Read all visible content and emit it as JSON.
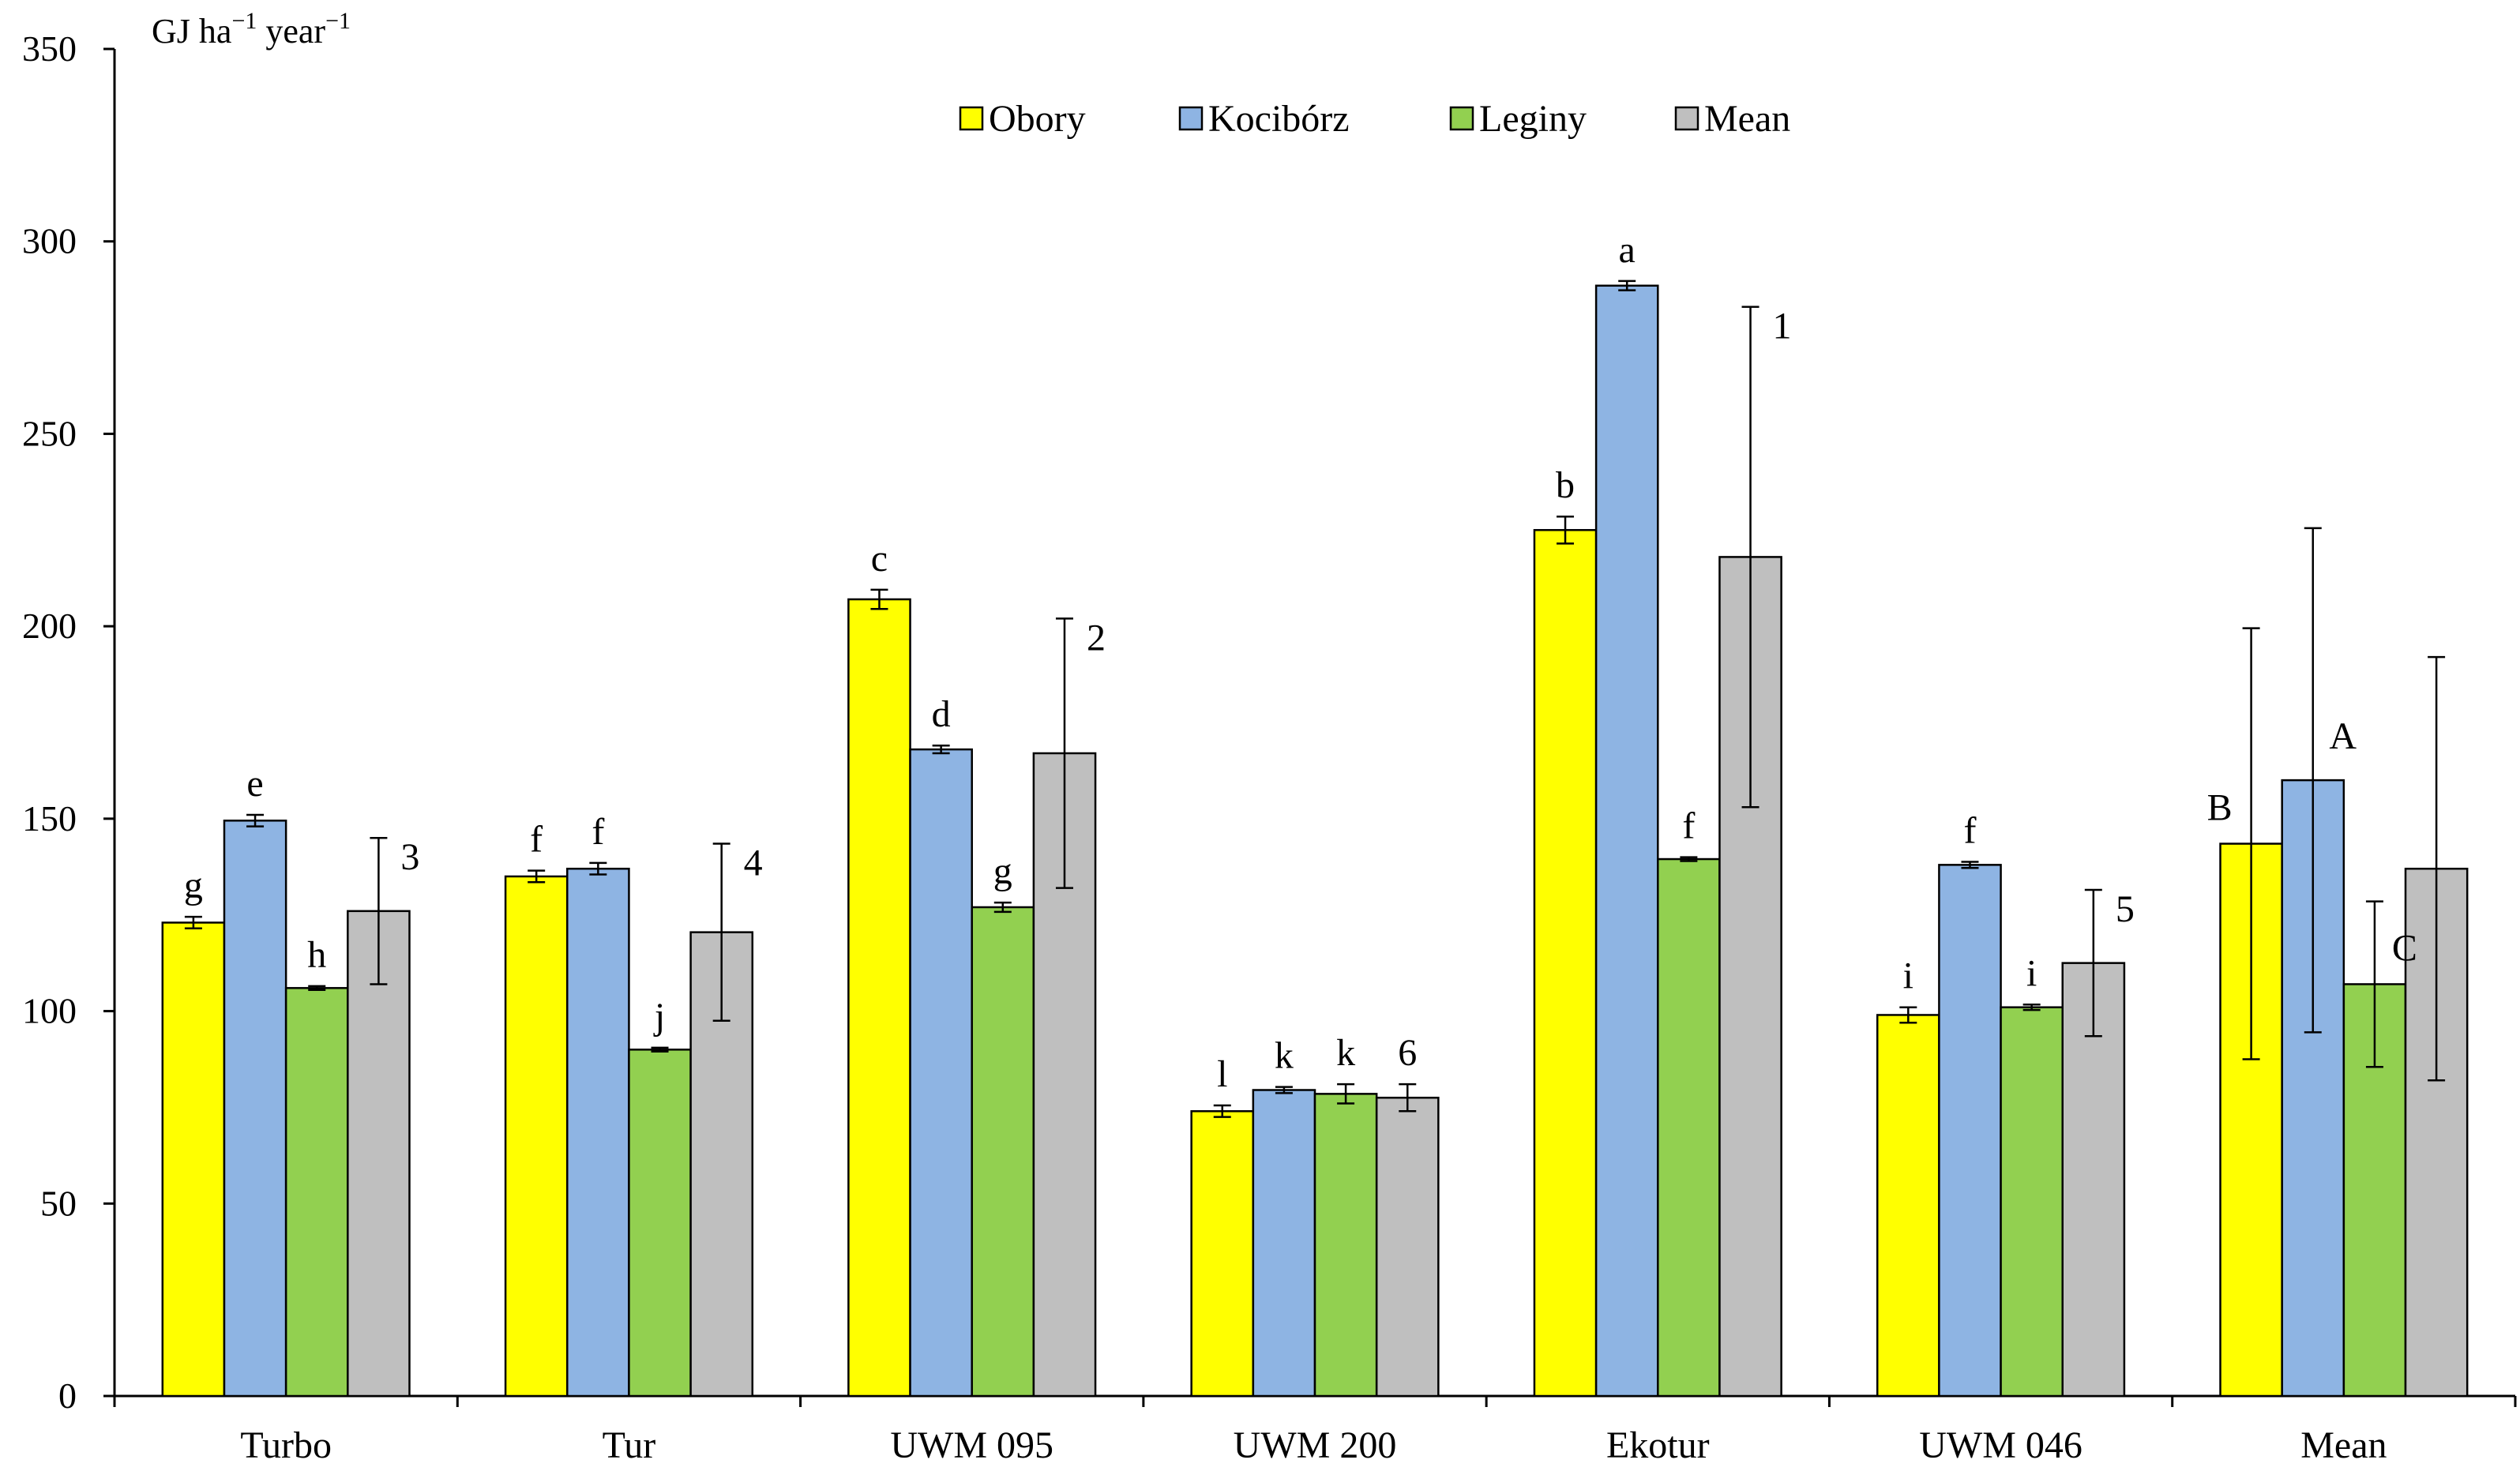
{
  "chart_data": {
    "type": "bar",
    "ylabel": "GJ ha⁻¹ year⁻¹",
    "ylabel_parts": {
      "a": "GJ ha",
      "a_sup": "−1",
      "b": " year",
      "b_sup": "−1"
    },
    "ylim": [
      0,
      350
    ],
    "yticks": [
      0,
      50,
      100,
      150,
      200,
      250,
      300,
      350
    ],
    "legend_position": "top-center",
    "categories": [
      "Turbo",
      "Tur",
      "UWM 095",
      "UWM 200",
      "Ekotur",
      "UWM 046",
      "Mean"
    ],
    "series": [
      {
        "name": "Obory",
        "color": "#FFFF00",
        "values": [
          123,
          135,
          207,
          74,
          225,
          99,
          143.5
        ],
        "errors": [
          1.5,
          1.5,
          2.5,
          1.5,
          3.5,
          2,
          56
        ],
        "letters": [
          "g",
          "f",
          "c",
          "l",
          "b",
          "i",
          "B"
        ]
      },
      {
        "name": "Kocibórz",
        "color": "#8EB4E3",
        "values": [
          149.5,
          137,
          168,
          79.5,
          288.5,
          138,
          160
        ],
        "errors": [
          1.5,
          1.5,
          1,
          0.8,
          1.2,
          0.8,
          65.5
        ],
        "letters": [
          "e",
          "f",
          "d",
          "k",
          "a",
          "f",
          "A"
        ]
      },
      {
        "name": "Leginy",
        "color": "#92D050",
        "values": [
          106,
          90,
          127,
          78.5,
          139.5,
          101,
          107
        ],
        "errors": [
          0.5,
          0.5,
          1.2,
          2.5,
          0.5,
          0.7,
          21.5
        ],
        "letters": [
          "h",
          "j",
          "g",
          "k",
          "f",
          "i",
          "C"
        ]
      },
      {
        "name": "Mean",
        "color": "#BFBFBF",
        "values": [
          126,
          120.5,
          167,
          77.5,
          218,
          112.5,
          137
        ],
        "errors": [
          19,
          23,
          35,
          3.5,
          65,
          19,
          55
        ],
        "letters": [
          "3",
          "4",
          "2",
          "6",
          "1",
          "5",
          ""
        ]
      }
    ]
  }
}
